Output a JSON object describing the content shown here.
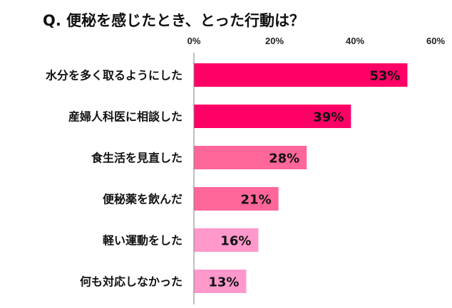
{
  "chart_data": {
    "type": "bar",
    "orientation": "horizontal",
    "title": "Q. 便秘を感じたとき、とった行動は？",
    "xlabel": "",
    "ylabel": "",
    "xlim": [
      0,
      60
    ],
    "ticks": [
      "0%",
      "20%",
      "40%",
      "60%"
    ],
    "tick_values": [
      0,
      20,
      40,
      60
    ],
    "categories": [
      "水分を多く取るようにした",
      "産婦人科医に相談した",
      "食生活を見直した",
      "便秘薬を飲んだ",
      "軽い運動をした",
      "何も対応しなかった"
    ],
    "values": [
      53,
      39,
      28,
      21,
      16,
      13
    ],
    "value_labels": [
      "53%",
      "39%",
      "28%",
      "21%",
      "16%",
      "13%"
    ],
    "bar_colors": [
      "#ff0066",
      "#ff0066",
      "#ff6699",
      "#ff6699",
      "#ff99cc",
      "#ff99cc"
    ],
    "grid": false,
    "legend": "none"
  }
}
